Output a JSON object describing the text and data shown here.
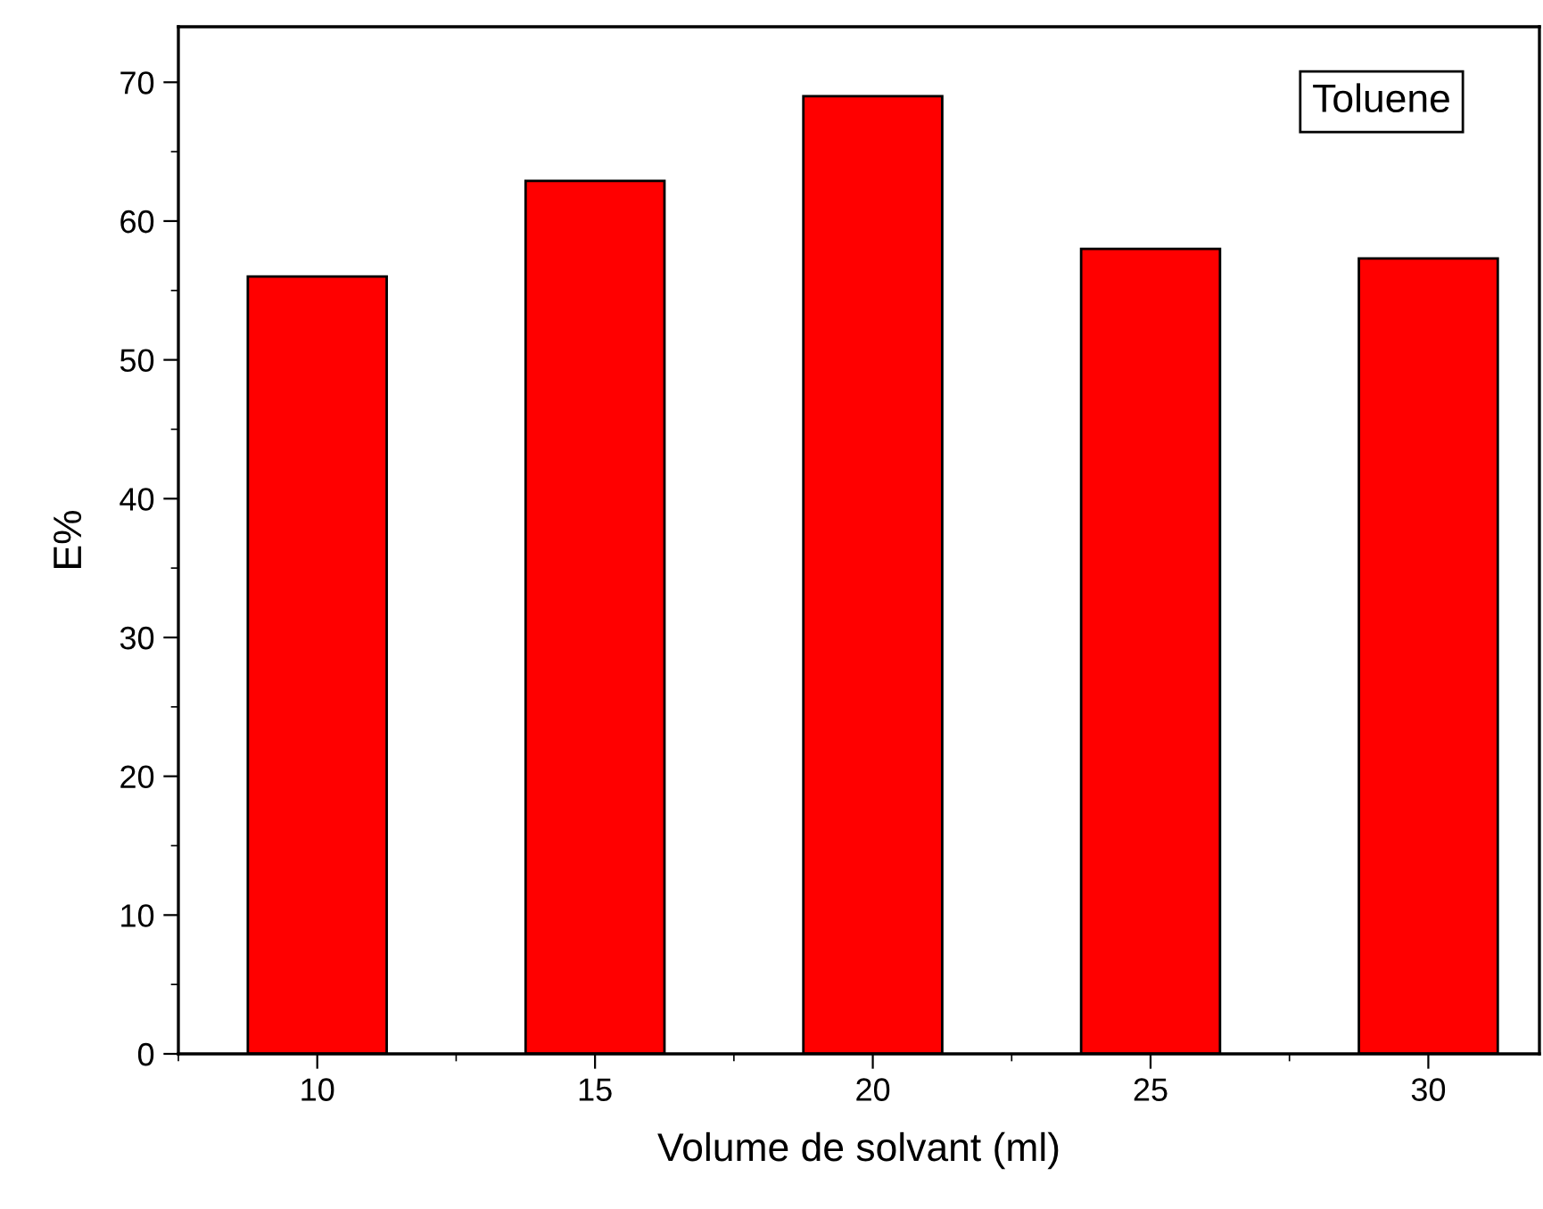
{
  "chart_data": {
    "type": "bar",
    "xlabel": "Volume de solvant (ml)",
    "ylabel": "E%",
    "x": [
      10,
      15,
      20,
      25,
      30
    ],
    "values": [
      56.0,
      62.9,
      69.0,
      58.0,
      57.3
    ],
    "color": "#ff0000",
    "xlim": [
      7.5,
      32
    ],
    "xticks": [
      10,
      15,
      20,
      25,
      30
    ],
    "ylim": [
      0,
      74
    ],
    "yticks": [
      0,
      10,
      20,
      30,
      40,
      50,
      60,
      70
    ],
    "annotations": [
      "Toluene"
    ],
    "grid": false
  }
}
